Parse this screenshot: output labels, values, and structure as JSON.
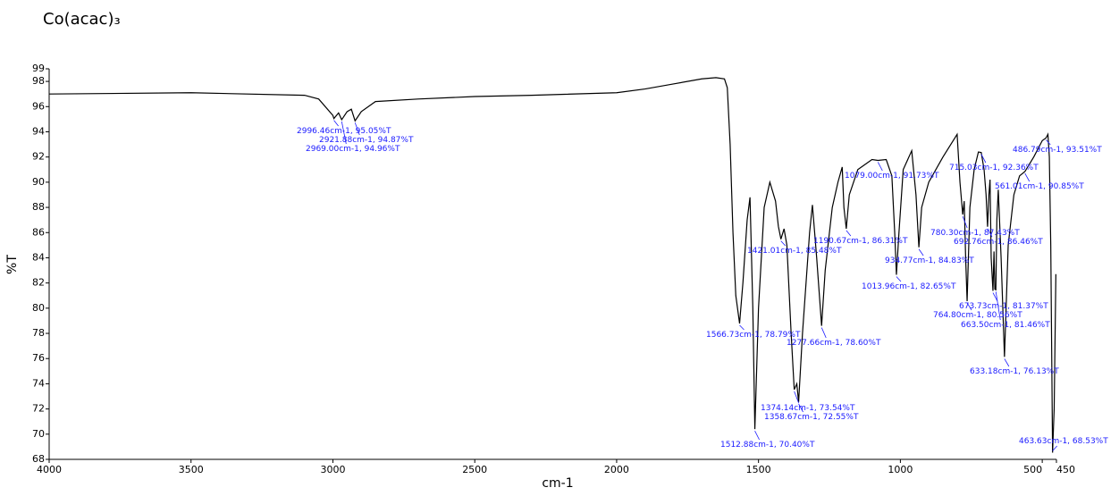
{
  "chart_data": {
    "type": "line",
    "title": "Co(acac)₃",
    "x_label": "cm-1",
    "y_label": "%T",
    "color": "#000000",
    "xlim": [
      4000,
      450
    ],
    "ylim": [
      68,
      99
    ],
    "xticks": [
      4000,
      3500,
      3000,
      2500,
      2000,
      1500,
      1000,
      500,
      450
    ],
    "yticks": [
      68,
      70,
      72,
      74,
      76,
      78,
      80,
      82,
      84,
      86,
      88,
      90,
      92,
      94,
      96,
      98,
      99
    ],
    "x": [
      4000,
      3500,
      3100,
      3050,
      3000,
      2996.46,
      2980,
      2969,
      2950,
      2935,
      2921.88,
      2900,
      2850,
      2700,
      2500,
      2300,
      2000,
      1900,
      1800,
      1700,
      1650,
      1620,
      1610,
      1600,
      1590,
      1580,
      1566.73,
      1555,
      1540,
      1530,
      1520,
      1512.88,
      1500,
      1480,
      1460,
      1440,
      1430,
      1421.01,
      1410,
      1400,
      1385,
      1374.14,
      1365,
      1358.67,
      1345,
      1320,
      1310,
      1295,
      1277.66,
      1265,
      1240,
      1220,
      1205,
      1199,
      1190.67,
      1180,
      1150,
      1100,
      1079,
      1050,
      1030,
      1020,
      1013.96,
      1005,
      990,
      960,
      945,
      934.77,
      925,
      900,
      850,
      800,
      790,
      780.3,
      775,
      770,
      764.8,
      755,
      740,
      725,
      715.03,
      705,
      698,
      692.76,
      688,
      684,
      680,
      673.73,
      670,
      667,
      663.5,
      660,
      655,
      645,
      633.18,
      620,
      600,
      580,
      561.01,
      530,
      500,
      486.79,
      480,
      475,
      470,
      463.63,
      458,
      452
    ],
    "values": [
      97.0,
      97.1,
      96.9,
      96.6,
      95.3,
      95.05,
      95.5,
      94.96,
      95.6,
      95.8,
      94.87,
      95.6,
      96.4,
      96.6,
      96.8,
      96.9,
      97.1,
      97.4,
      97.8,
      98.2,
      98.3,
      98.2,
      97.5,
      93,
      86,
      81,
      78.79,
      82,
      87,
      88.8,
      80,
      70.4,
      80,
      88,
      90,
      88.5,
      86.5,
      85.48,
      86.3,
      85,
      78,
      73.54,
      74,
      72.55,
      78,
      86,
      88.2,
      84,
      78.6,
      83,
      88,
      90,
      91.2,
      88,
      86.31,
      89,
      91,
      91.8,
      91.73,
      91.8,
      90.5,
      86,
      82.65,
      86,
      91,
      92.5,
      89,
      84.83,
      88,
      90,
      92,
      93.8,
      90,
      87.43,
      88.5,
      84,
      80.56,
      88,
      91,
      92.4,
      92.36,
      91,
      89,
      86.46,
      89,
      90.2,
      84,
      81.37,
      84.5,
      81.5,
      81.46,
      87,
      89.4,
      84,
      76.13,
      85,
      89,
      90.5,
      90.85,
      92,
      93.3,
      93.51,
      93.8,
      92,
      85,
      68.53,
      72,
      82.7
    ],
    "annotations": [
      {
        "label": "2996.46cm-1, 95.05%T",
        "x": 2996.46,
        "y": 95.05
      },
      {
        "label": "2921.88cm-1, 94.87%T",
        "x": 2921.88,
        "y": 94.87
      },
      {
        "label": "2969.00cm-1, 94.96%T",
        "x": 2969.0,
        "y": 94.96
      },
      {
        "label": "1566.73cm-1, 78.79%T",
        "x": 1566.73,
        "y": 78.79
      },
      {
        "label": "1512.88cm-1, 70.40%T",
        "x": 1512.88,
        "y": 70.4
      },
      {
        "label": "1421.01cm-1, 85.48%T",
        "x": 1421.01,
        "y": 85.48
      },
      {
        "label": "1374.14cm-1, 73.54%T",
        "x": 1374.14,
        "y": 73.54
      },
      {
        "label": "1358.67cm-1, 72.55%T",
        "x": 1358.67,
        "y": 72.55
      },
      {
        "label": "1277.66cm-1, 78.60%T",
        "x": 1277.66,
        "y": 78.6
      },
      {
        "label": "1190.67cm-1, 86.31%T",
        "x": 1190.67,
        "y": 86.31
      },
      {
        "label": "1079.00cm-1, 91.73%T",
        "x": 1079.0,
        "y": 91.73
      },
      {
        "label": "1013.96cm-1, 82.65%T",
        "x": 1013.96,
        "y": 82.65
      },
      {
        "label": "934.77cm-1, 84.83%T",
        "x": 934.77,
        "y": 84.83
      },
      {
        "label": "780.30cm-1, 87.43%T",
        "x": 780.3,
        "y": 87.43
      },
      {
        "label": "764.80cm-1, 80.56%T",
        "x": 764.8,
        "y": 80.56
      },
      {
        "label": "715.03cm-1, 92.36%T",
        "x": 715.03,
        "y": 92.36
      },
      {
        "label": "692.76cm-1, 86.46%T",
        "x": 692.76,
        "y": 86.46
      },
      {
        "label": "673.73cm-1, 81.37%T",
        "x": 673.73,
        "y": 81.37
      },
      {
        "label": "663.50cm-1, 81.46%T",
        "x": 663.5,
        "y": 81.46
      },
      {
        "label": "633.18cm-1, 76.13%T",
        "x": 633.18,
        "y": 76.13
      },
      {
        "label": "561.01cm-1, 90.85%T",
        "x": 561.01,
        "y": 90.85
      },
      {
        "label": "486.79cm-1, 93.51%T",
        "x": 486.79,
        "y": 93.51
      },
      {
        "label": "463.63cm-1, 68.53%T",
        "x": 463.63,
        "y": 68.53
      }
    ]
  }
}
